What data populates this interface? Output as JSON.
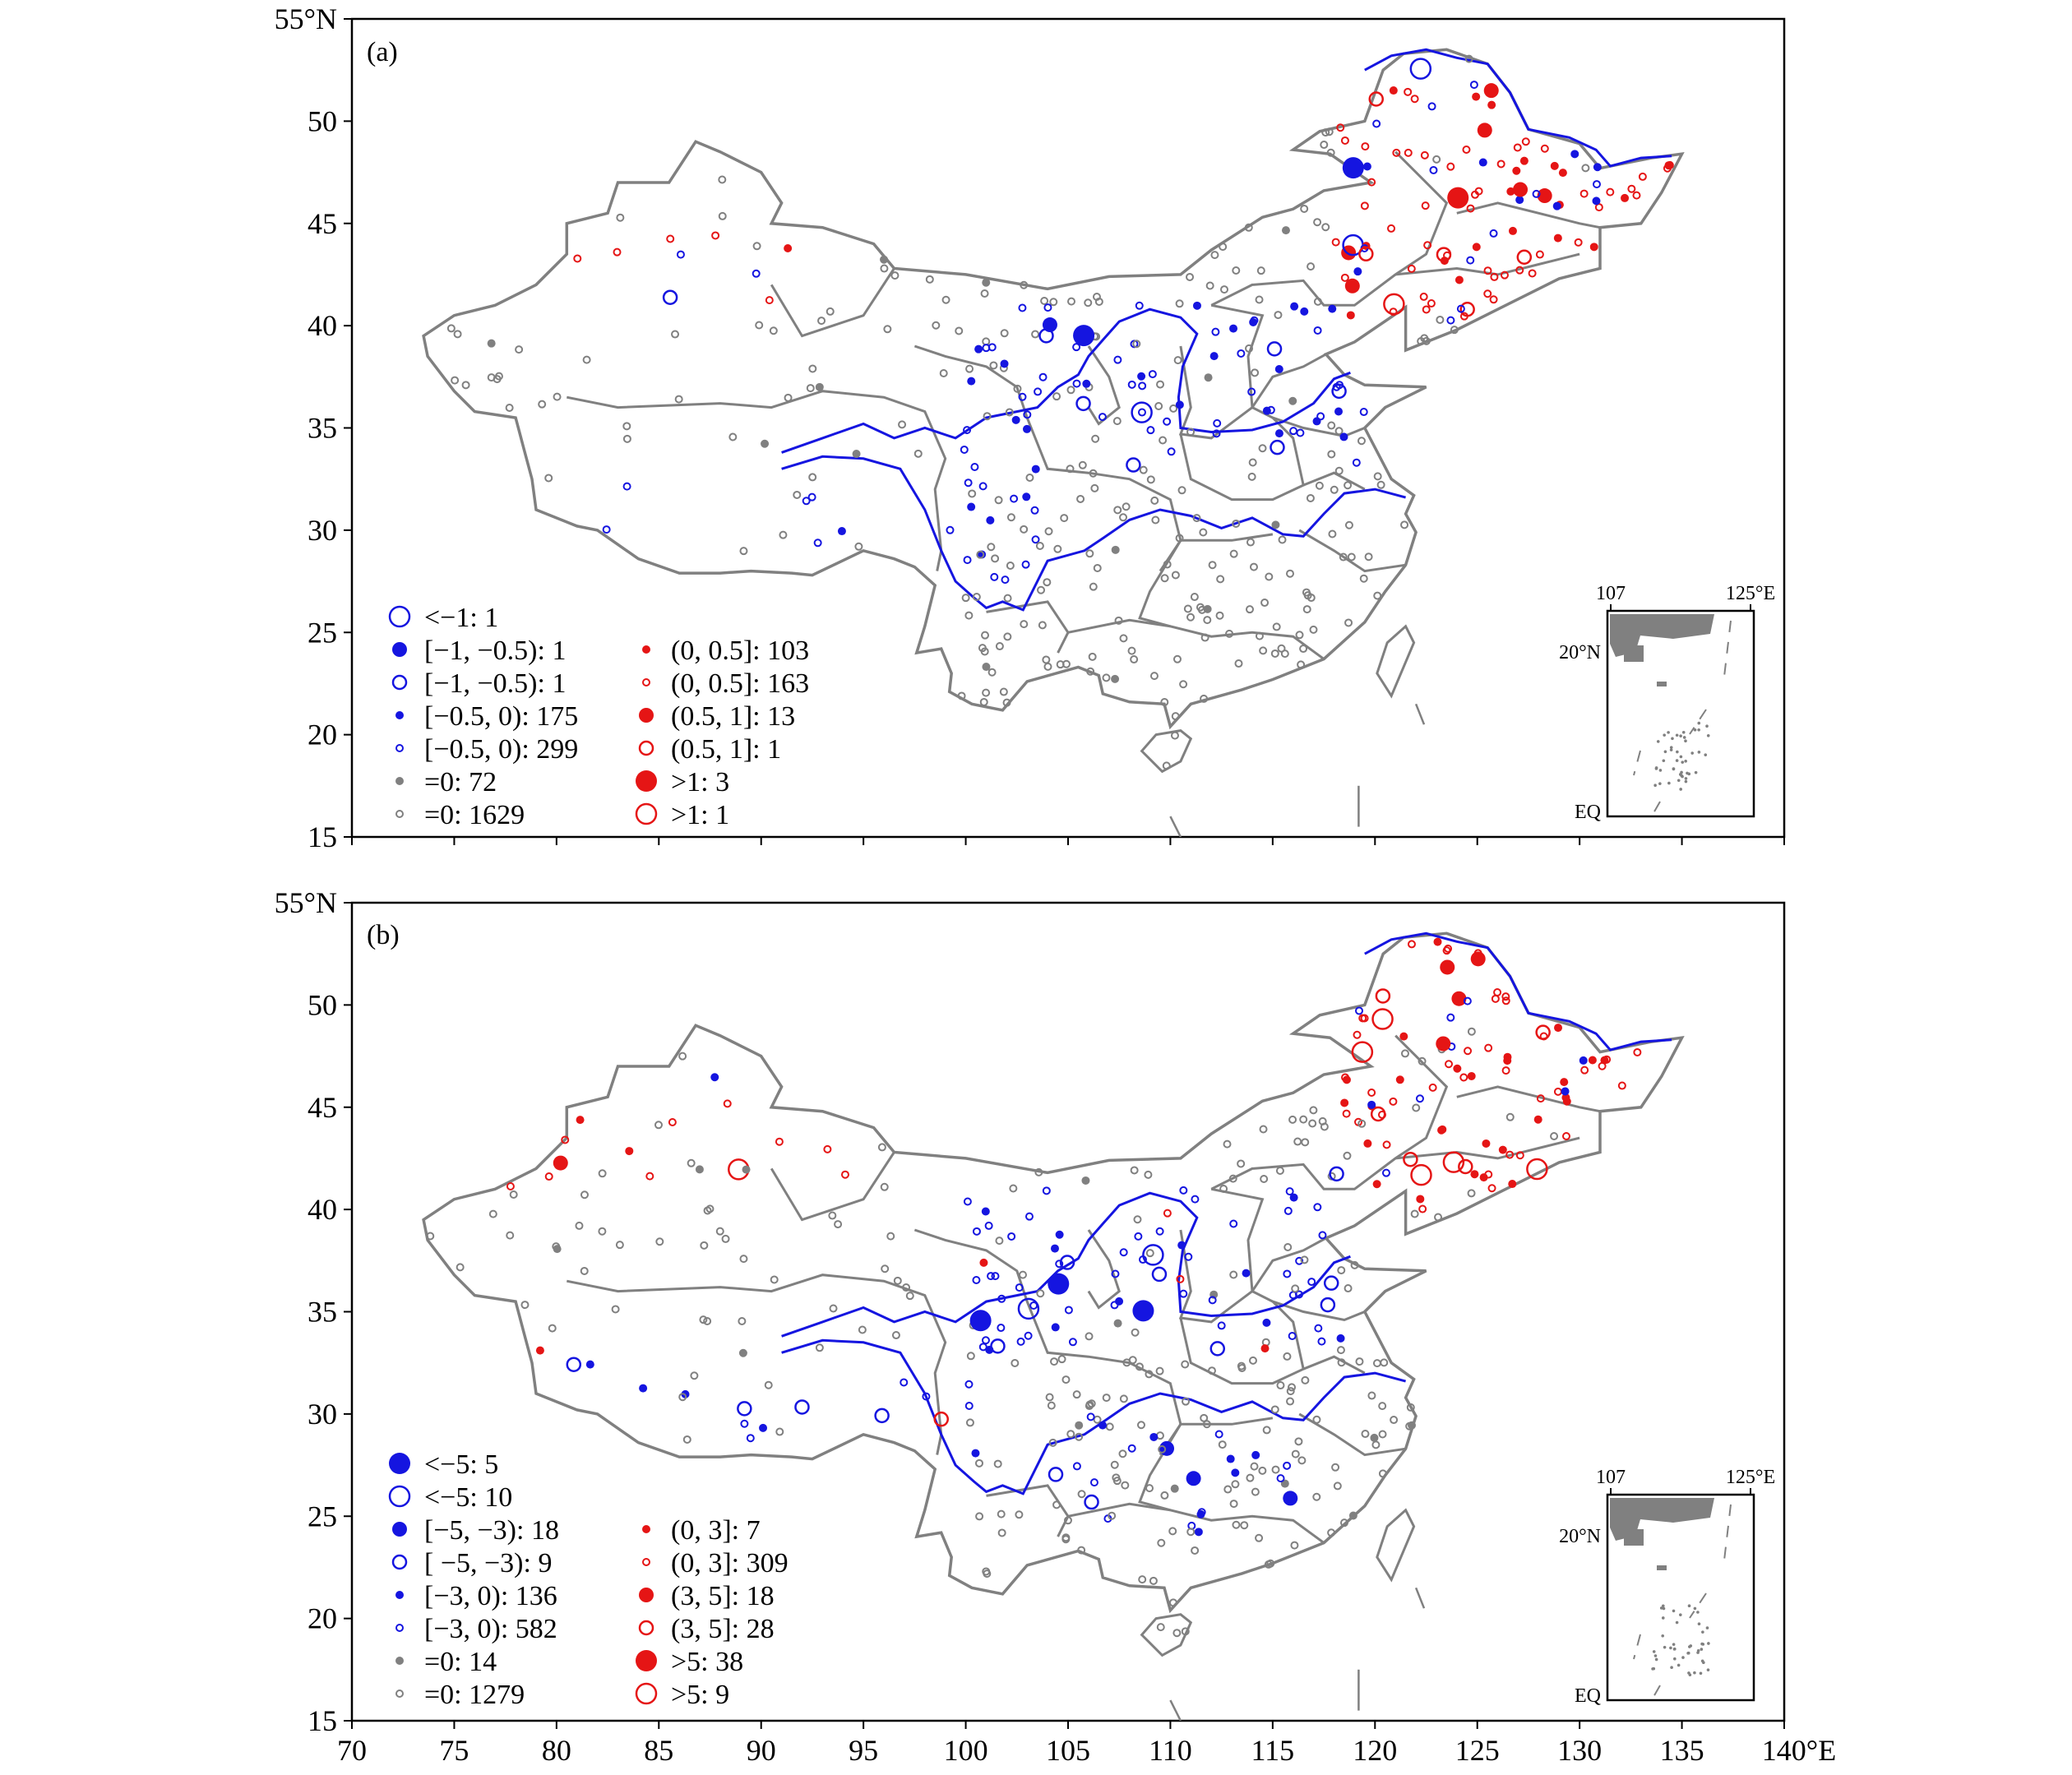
{
  "colors": {
    "negative": "#1515e0",
    "positive": "#e51515",
    "zero": "#808080",
    "boundary": "#808080",
    "river": "#1515e0"
  },
  "axes": {
    "x_ticks": [
      "70",
      "75",
      "80",
      "85",
      "90",
      "95",
      "100",
      "105",
      "110",
      "115",
      "120",
      "125",
      "130",
      "135",
      "140°E"
    ],
    "y_ticks": [
      "55°N",
      "50",
      "45",
      "40",
      "35",
      "30",
      "25",
      "20",
      "15"
    ]
  },
  "inset": {
    "top_left_label": "107",
    "top_right_label": "125°E",
    "lat_label": "20°N",
    "eq_label": "EQ"
  },
  "panels": [
    {
      "tag": "(a)",
      "legend_left": [
        {
          "label": "<−1: 1",
          "color": "negative",
          "filled": false,
          "size": "xl"
        },
        {
          "label": "[−1, −0.5): 1",
          "color": "negative",
          "filled": true,
          "size": "lg"
        },
        {
          "label": "[−1, −0.5): 1",
          "color": "negative",
          "filled": false,
          "size": "lg"
        },
        {
          "label": "[−0.5, 0): 175",
          "color": "negative",
          "filled": true,
          "size": "sm"
        },
        {
          "label": "[−0.5, 0): 299",
          "color": "negative",
          "filled": false,
          "size": "sm"
        },
        {
          "label": "=0: 72",
          "color": "zero",
          "filled": true,
          "size": "sm"
        },
        {
          "label": "=0: 1629",
          "color": "zero",
          "filled": false,
          "size": "sm"
        }
      ],
      "legend_right": [
        {
          "label": "(0, 0.5]: 103",
          "color": "positive",
          "filled": true,
          "size": "sm"
        },
        {
          "label": "(0, 0.5]: 163",
          "color": "positive",
          "filled": false,
          "size": "sm"
        },
        {
          "label": "(0.5, 1]: 13",
          "color": "positive",
          "filled": true,
          "size": "lg"
        },
        {
          "label": "(0.5, 1]: 1",
          "color": "positive",
          "filled": false,
          "size": "lg"
        },
        {
          "label": ">1: 3",
          "color": "positive",
          "filled": true,
          "size": "xl"
        },
        {
          "label": ">1: 1",
          "color": "positive",
          "filled": false,
          "size": "xl"
        }
      ]
    },
    {
      "tag": "(b)",
      "legend_left": [
        {
          "label": "<−5: 5",
          "color": "negative",
          "filled": true,
          "size": "xl"
        },
        {
          "label": "<−5: 10",
          "color": "negative",
          "filled": false,
          "size": "xl"
        },
        {
          "label": "[−5, −3): 18",
          "color": "negative",
          "filled": true,
          "size": "lg"
        },
        {
          "label": "[ −5, −3): 9",
          "color": "negative",
          "filled": false,
          "size": "lg"
        },
        {
          "label": "[−3, 0): 136",
          "color": "negative",
          "filled": true,
          "size": "sm"
        },
        {
          "label": "[−3, 0): 582",
          "color": "negative",
          "filled": false,
          "size": "sm"
        },
        {
          "label": "=0: 14",
          "color": "zero",
          "filled": true,
          "size": "sm"
        },
        {
          "label": "=0: 1279",
          "color": "zero",
          "filled": false,
          "size": "sm"
        }
      ],
      "legend_right": [
        {
          "label": "(0, 3]: 7",
          "color": "positive",
          "filled": true,
          "size": "sm"
        },
        {
          "label": "(0, 3]: 309",
          "color": "positive",
          "filled": false,
          "size": "sm"
        },
        {
          "label": "(3, 5]: 18",
          "color": "positive",
          "filled": true,
          "size": "lg"
        },
        {
          "label": "(3, 5]: 28",
          "color": "positive",
          "filled": false,
          "size": "lg"
        },
        {
          "label": ">5: 38",
          "color": "positive",
          "filled": true,
          "size": "xl"
        },
        {
          "label": ">5: 9",
          "color": "positive",
          "filled": false,
          "size": "xl"
        }
      ]
    }
  ]
}
